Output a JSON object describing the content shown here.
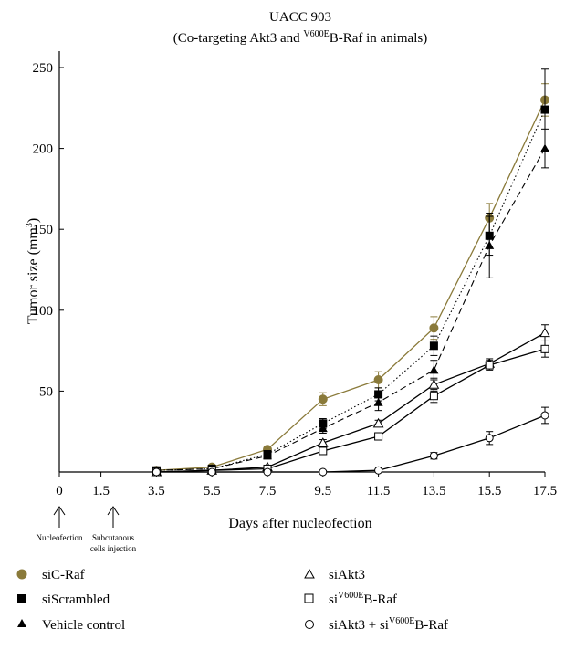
{
  "chart_data": {
    "type": "line",
    "title": "UACC 903",
    "subtitle_parts": [
      "(Co-targeting Akt3 and ",
      "V600E",
      "B-Raf in animals)"
    ],
    "xlabel": "Days after nucleofection",
    "ylabel_parts": [
      "Tumor size (mm",
      "3",
      ")"
    ],
    "ylim": [
      0,
      250
    ],
    "yticks": [
      50,
      100,
      150,
      200,
      250
    ],
    "xticks": [
      "0",
      "1.5",
      "3.5",
      "5.5",
      "7.5",
      "9.5",
      "11.5",
      "13.5",
      "15.5",
      "17.5"
    ],
    "x": [
      3.5,
      5.5,
      7.5,
      9.5,
      11.5,
      13.5,
      15.5,
      17.5
    ],
    "events": [
      {
        "x": 0,
        "label": "Nucleofection"
      },
      {
        "x": 1.5,
        "label_lines": [
          "Subcutanous",
          "cells injection"
        ]
      }
    ],
    "series": [
      {
        "name": "siC-Raf",
        "marker": "circle-filled",
        "color": "#8a7a3a",
        "line": "solid",
        "values": [
          1,
          3,
          14,
          45,
          57,
          89,
          157,
          230
        ],
        "errors": [
          1,
          1,
          2,
          4,
          5,
          7,
          9,
          10
        ]
      },
      {
        "name": "siScrambled",
        "marker": "square-filled",
        "color": "#000000",
        "line": "dotted",
        "values": [
          1,
          2,
          11,
          30,
          48,
          78,
          146,
          224
        ],
        "errors": [
          1,
          1,
          2,
          3,
          4,
          6,
          12,
          25
        ]
      },
      {
        "name": "Vehicle control",
        "marker": "triangle-filled",
        "color": "#000000",
        "line": "dashed",
        "values": [
          1,
          2,
          10,
          27,
          43,
          63,
          140,
          200
        ],
        "errors": [
          1,
          1,
          2,
          3,
          5,
          6,
          20,
          12
        ]
      },
      {
        "name": "siAkt3",
        "marker": "triangle-open",
        "color": "#000000",
        "line": "solid",
        "values": [
          0,
          1,
          3,
          18,
          30,
          54,
          67,
          86
        ],
        "errors": [
          1,
          1,
          1,
          2,
          2,
          4,
          3,
          5
        ]
      },
      {
        "name_parts": [
          "si",
          "V600E",
          "B-Raf"
        ],
        "marker": "square-open",
        "color": "#000000",
        "line": "solid",
        "values": [
          0,
          1,
          2,
          13,
          22,
          47,
          66,
          76
        ],
        "errors": [
          1,
          1,
          1,
          2,
          2,
          4,
          3,
          5
        ]
      },
      {
        "name_parts": [
          "siAkt3 + si",
          "V600E",
          "B-Raf"
        ],
        "marker": "circle-open",
        "color": "#000000",
        "line": "solid",
        "values": [
          0,
          0,
          0,
          0,
          1,
          10,
          21,
          35
        ],
        "errors": [
          0,
          0,
          0,
          0,
          0,
          2,
          4,
          5
        ]
      }
    ],
    "legend_placement": "bottom",
    "grid": false
  }
}
